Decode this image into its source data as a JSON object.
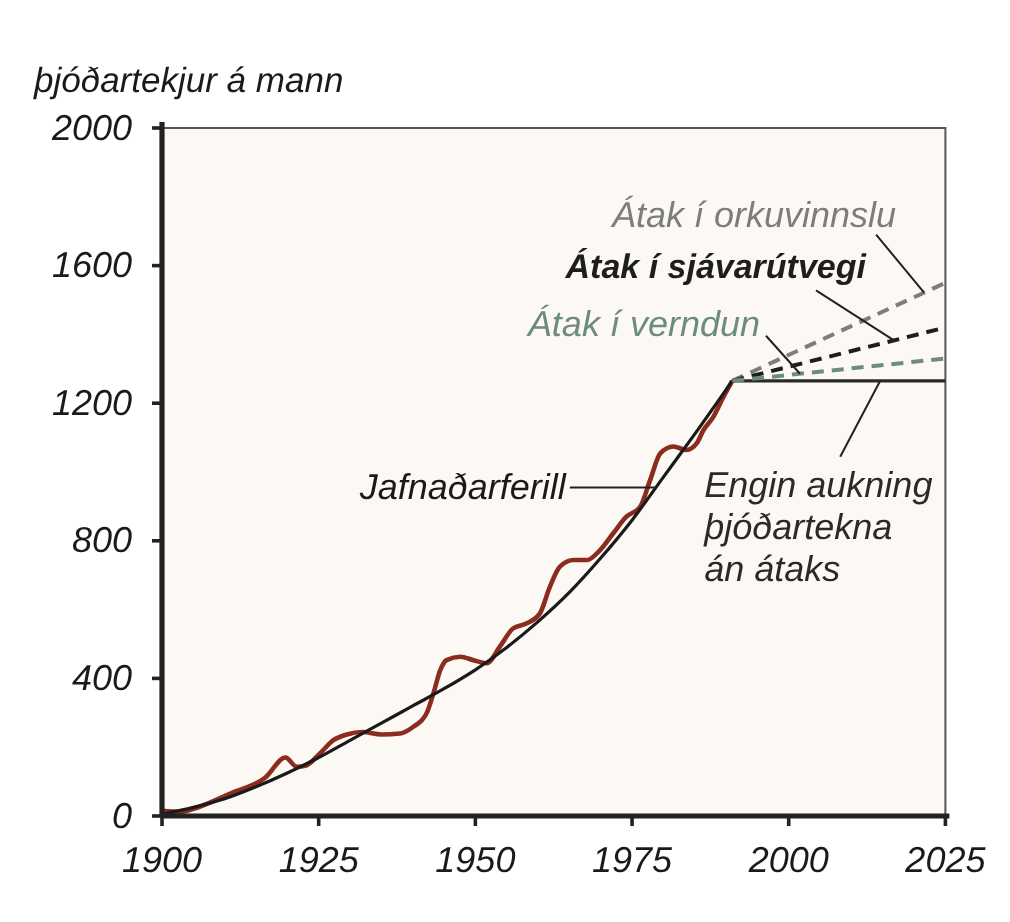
{
  "chart_data": {
    "type": "line",
    "ylabel": "þjóðartekjur á mann",
    "xlim": [
      1900,
      2025
    ],
    "xticks": [
      1900,
      1925,
      1950,
      1975,
      2000,
      2025
    ],
    "ylim": [
      0,
      2000
    ],
    "yticks": [
      0,
      400,
      800,
      1200,
      1600,
      2000
    ],
    "series": [
      {
        "color": "#8b2c1f",
        "x": [
          1900,
          1903,
          1906,
          1911,
          1916.5,
          1919.7,
          1921.5,
          1923,
          1925.2,
          1927.4,
          1929.5,
          1932,
          1935,
          1938,
          1940,
          1942.2,
          1943.3,
          1944.4,
          1945.4,
          1947.6,
          1949.7,
          1951.8,
          1953.9,
          1956,
          1958.2,
          1960.3,
          1961.9,
          1963.5,
          1965.7,
          1967.8,
          1969.9,
          1972,
          1974.1,
          1976.3,
          1977.9,
          1979.5,
          1981.6,
          1983.7,
          1985.3,
          1986.4,
          1988,
          1989.6,
          1991
        ],
        "values": [
          15,
          12,
          27,
          66,
          112,
          170,
          143,
          147,
          182,
          221,
          237,
          244,
          237,
          240,
          258,
          298,
          356,
          424,
          453,
          463,
          453,
          444,
          492,
          545,
          560,
          589,
          667,
          725,
          744,
          744,
          773,
          822,
          870,
          899,
          977,
          1054,
          1074,
          1064,
          1083,
          1122,
          1161,
          1219,
          1265
        ]
      },
      {
        "name": "Jafnaðarferill",
        "color": "#1a1a1a",
        "x": [
          1900,
          1905,
          1910,
          1915,
          1920,
          1925,
          1930,
          1935,
          1940,
          1945,
          1950,
          1955,
          1960,
          1965,
          1970,
          1975,
          1980,
          1985,
          1991
        ],
        "values": [
          5,
          25,
          50,
          85,
          125,
          170,
          220,
          270,
          320,
          370,
          425,
          490,
          565,
          650,
          750,
          860,
          985,
          1110,
          1265
        ]
      },
      {
        "name": "Engin aukning þjóðartekna án átaks",
        "color": "#2a2a2a",
        "x": [
          1991,
          2025
        ],
        "values": [
          1265,
          1265
        ]
      },
      {
        "name": "Átak í orkuvinnslu",
        "color": "#7d7d7d",
        "line_style": "dashed",
        "x": [
          1991,
          2025
        ],
        "values": [
          1265,
          1550
        ]
      },
      {
        "name": "Átak í sjávarútvegi",
        "color": "#1e1e1e",
        "line_style": "dashed",
        "x": [
          1991,
          2025
        ],
        "values": [
          1265,
          1420
        ]
      },
      {
        "name": "Átak í verndun",
        "color": "#6e8c7e",
        "line_style": "dashed",
        "x": [
          1991,
          2025
        ],
        "values": [
          1265,
          1330
        ]
      }
    ]
  }
}
